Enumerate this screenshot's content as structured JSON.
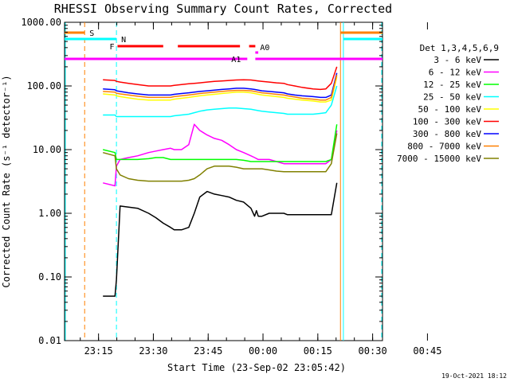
{
  "chart_data": {
    "type": "line",
    "title": "RHESSI Observing Summary Count Rates, Corrected",
    "xlabel": "Start Time (23-Sep-02 23:05:42)",
    "ylabel": "Corrected Count Rate (s⁻¹ detector⁻¹)",
    "y_scale": "log",
    "ylim": [
      0.01,
      1000
    ],
    "xlim_minutes": [
      0,
      87
    ],
    "x_tick_labels": [
      "23:15",
      "23:30",
      "23:45",
      "00:00",
      "00:15",
      "00:30",
      "00:45"
    ],
    "x_tick_minutes": [
      9.3,
      24.3,
      39.3,
      54.3,
      69.3,
      84.3,
      99.3
    ],
    "y_tick_labels": [
      "1000.00",
      "100.00",
      "10.00",
      "1.00",
      "0.10",
      "0.01"
    ],
    "y_tick_values": [
      1000,
      100,
      10,
      1,
      0.1,
      0.01
    ],
    "legend_title": "Det 1,3,4,5,6,9",
    "legend_position": "right",
    "footer_date": "19-Oct-2021 18:12",
    "series": [
      {
        "name": "3 - 6 keV",
        "color": "#000000",
        "x": [
          10.5,
          13.8,
          14.2,
          15.2,
          17.5,
          20,
          23,
          25,
          27,
          29,
          30,
          32,
          34,
          35.5,
          37,
          39,
          41,
          43,
          45,
          47,
          49,
          51,
          52,
          52.5,
          53,
          54,
          56,
          58,
          60,
          61,
          63,
          65,
          68,
          70,
          71.5,
          73,
          74.5
        ],
        "y": [
          0.05,
          0.05,
          0.09,
          1.3,
          1.25,
          1.2,
          1.0,
          0.85,
          0.7,
          0.6,
          0.55,
          0.55,
          0.6,
          1.0,
          1.8,
          2.2,
          2.0,
          1.9,
          1.8,
          1.6,
          1.5,
          1.2,
          0.9,
          1.1,
          0.9,
          0.9,
          1.0,
          1.0,
          1.0,
          0.95,
          0.95,
          0.95,
          0.95,
          0.95,
          0.95,
          0.95,
          3.0
        ]
      },
      {
        "name": "6 - 12 keV",
        "color": "#ff00ff",
        "x": [
          10.5,
          13.8,
          14.2,
          15.2,
          17.5,
          20,
          23,
          25,
          27,
          29,
          30,
          32,
          34,
          35.5,
          37,
          39,
          41,
          43,
          45,
          47,
          49,
          51,
          52,
          53,
          54,
          56,
          58,
          60,
          61,
          63,
          65,
          68,
          70,
          71.5,
          73,
          74.5
        ],
        "y": [
          3.0,
          2.7,
          5.5,
          7.0,
          7.5,
          8.0,
          9.0,
          9.5,
          10.0,
          10.5,
          10.0,
          10.0,
          12.0,
          25.0,
          20.0,
          17.0,
          15.0,
          14.0,
          12.0,
          10.0,
          9.0,
          8.0,
          7.5,
          7.0,
          7.0,
          7.0,
          6.5,
          6.0,
          6.0,
          6.0,
          6.0,
          6.0,
          6.0,
          6.0,
          7.0,
          20.0
        ]
      },
      {
        "name": "12 - 25 keV",
        "color": "#00ff00",
        "x": [
          10.5,
          13.8,
          14.2,
          15.2,
          17.5,
          20,
          23,
          25,
          27,
          29,
          30,
          32,
          34,
          35.5,
          37,
          39,
          41,
          43,
          45,
          47,
          49,
          51,
          52,
          53,
          54,
          56,
          58,
          60,
          61,
          63,
          65,
          68,
          70,
          71.5,
          73,
          74.5
        ],
        "y": [
          10.0,
          9.0,
          7.0,
          7.0,
          7.0,
          7.0,
          7.2,
          7.5,
          7.5,
          7.0,
          7.0,
          7.0,
          7.0,
          7.0,
          7.0,
          7.0,
          7.0,
          7.0,
          7.0,
          7.0,
          6.8,
          6.5,
          6.5,
          6.5,
          6.5,
          6.5,
          6.5,
          6.5,
          6.5,
          6.5,
          6.5,
          6.5,
          6.5,
          6.5,
          7.0,
          25.0
        ]
      },
      {
        "name": "25 - 50 keV",
        "color": "#00ffff",
        "x": [
          10.5,
          13.8,
          14.2,
          15.2,
          17.5,
          20,
          23,
          25,
          27,
          29,
          30,
          32,
          34,
          35.5,
          37,
          39,
          41,
          43,
          45,
          47,
          49,
          51,
          52,
          53,
          54,
          56,
          58,
          60,
          61,
          63,
          65,
          68,
          70,
          71.5,
          73,
          74.5
        ],
        "y": [
          35,
          35,
          33,
          33,
          33,
          33,
          33,
          33,
          33,
          33,
          34,
          35,
          36,
          38,
          40,
          42,
          43,
          44,
          45,
          45,
          44,
          43,
          42,
          41,
          40,
          39,
          38,
          37,
          36,
          36,
          36,
          36,
          37,
          38,
          50,
          100
        ]
      },
      {
        "name": "50 - 100 keV",
        "color": "#ffff00",
        "x": [
          10.5,
          13.8,
          14.2,
          15.2,
          17.5,
          20,
          23,
          25,
          27,
          29,
          30,
          32,
          34,
          35.5,
          37,
          39,
          41,
          43,
          45,
          47,
          49,
          51,
          52,
          53,
          54,
          56,
          58,
          60,
          61,
          63,
          65,
          68,
          70,
          71.5,
          73,
          74.5
        ],
        "y": [
          75,
          72,
          70,
          68,
          65,
          62,
          60,
          60,
          60,
          60,
          62,
          64,
          66,
          68,
          70,
          72,
          74,
          76,
          78,
          80,
          80,
          78,
          76,
          74,
          72,
          70,
          68,
          66,
          64,
          62,
          60,
          58,
          56,
          56,
          60,
          140
        ]
      },
      {
        "name": "100 - 300 keV",
        "color": "#ff0000",
        "x": [
          10.5,
          13.8,
          14.2,
          15.2,
          17.5,
          20,
          23,
          25,
          27,
          29,
          30,
          32,
          34,
          35.5,
          37,
          39,
          41,
          43,
          45,
          47,
          49,
          51,
          52,
          53,
          54,
          56,
          58,
          60,
          61,
          63,
          65,
          68,
          70,
          71.5,
          73,
          74.5
        ],
        "y": [
          125,
          122,
          118,
          115,
          110,
          105,
          100,
          100,
          100,
          100,
          102,
          105,
          108,
          110,
          112,
          115,
          118,
          120,
          122,
          124,
          125,
          124,
          122,
          120,
          118,
          115,
          112,
          110,
          105,
          100,
          95,
          90,
          88,
          90,
          110,
          200
        ]
      },
      {
        "name": "300 - 800 keV",
        "color": "#0000ff",
        "x": [
          10.5,
          13.8,
          14.2,
          15.2,
          17.5,
          20,
          23,
          25,
          27,
          29,
          30,
          32,
          34,
          35.5,
          37,
          39,
          41,
          43,
          45,
          47,
          49,
          51,
          52,
          53,
          54,
          56,
          58,
          60,
          61,
          63,
          65,
          68,
          70,
          71.5,
          73,
          74.5
        ],
        "y": [
          90,
          87,
          84,
          82,
          78,
          75,
          72,
          72,
          72,
          72,
          74,
          76,
          78,
          80,
          82,
          84,
          86,
          88,
          90,
          92,
          92,
          90,
          88,
          86,
          84,
          82,
          80,
          78,
          75,
          72,
          70,
          68,
          66,
          66,
          72,
          160
        ]
      },
      {
        "name": "800 - 7000 keV",
        "color": "#ff8000",
        "x": [
          10.5,
          13.8,
          14.2,
          15.2,
          17.5,
          20,
          23,
          25,
          27,
          29,
          30,
          32,
          34,
          35.5,
          37,
          39,
          41,
          43,
          45,
          47,
          49,
          51,
          52,
          53,
          54,
          56,
          58,
          60,
          61,
          63,
          65,
          68,
          70,
          71.5,
          73,
          74.5
        ],
        "y": [
          82,
          80,
          77,
          75,
          72,
          69,
          66,
          66,
          66,
          66,
          68,
          70,
          72,
          74,
          76,
          78,
          80,
          82,
          84,
          85,
          85,
          84,
          82,
          80,
          78,
          76,
          74,
          72,
          70,
          67,
          64,
          62,
          60,
          60,
          66,
          150
        ]
      },
      {
        "name": "7000 - 15000 keV",
        "color": "#808000",
        "x": [
          10.5,
          13.8,
          14.2,
          15.2,
          17.5,
          20,
          23,
          25,
          27,
          29,
          30,
          32,
          34,
          35.5,
          37,
          39,
          41,
          43,
          45,
          47,
          49,
          51,
          52,
          53,
          54,
          56,
          58,
          60,
          61,
          63,
          65,
          68,
          70,
          71.5,
          73,
          74.5
        ],
        "y": [
          9.0,
          8.0,
          5.0,
          4.0,
          3.5,
          3.3,
          3.2,
          3.2,
          3.2,
          3.2,
          3.2,
          3.2,
          3.3,
          3.5,
          4.0,
          5.0,
          5.5,
          5.5,
          5.5,
          5.3,
          5.0,
          5.0,
          5.0,
          5.0,
          5.0,
          4.8,
          4.6,
          4.5,
          4.5,
          4.5,
          4.5,
          4.5,
          4.5,
          4.5,
          6.0,
          18.0
        ]
      }
    ],
    "vertical_lines": [
      {
        "x": 5.5,
        "color": "#ff8000",
        "style": "dashed"
      },
      {
        "x": 14.2,
        "color": "#00ffff",
        "style": "dashed"
      },
      {
        "x": 75.5,
        "color": "#ff8000",
        "style": "solid"
      },
      {
        "x": 76.3,
        "color": "#00ffff",
        "style": "solid"
      },
      {
        "x": 87.0,
        "color": "#ff8000",
        "style": "dashed"
      },
      {
        "x": 87.3,
        "color": "#00ffff",
        "style": "dashed"
      }
    ],
    "annotation_bars": [
      {
        "label": "S",
        "color": "#ff8000",
        "segments": [
          [
            0,
            5.5
          ],
          [
            75.5,
            87
          ]
        ],
        "level": 1
      },
      {
        "label": "N",
        "color": "#00ffff",
        "segments": [
          [
            0,
            14.2
          ],
          [
            76.3,
            87
          ]
        ],
        "level": 2
      },
      {
        "label": "F",
        "color": "#ff0000",
        "segments": [
          [
            14.5,
            27
          ],
          [
            31,
            48
          ],
          [
            50.5,
            52.2
          ]
        ],
        "level": 3
      },
      {
        "label": "A0",
        "color": "#ff00ff",
        "segments": [
          [
            52.2,
            53
          ]
        ],
        "level": 4
      },
      {
        "label": "A1",
        "color": "#ff00ff",
        "segments": [
          [
            0,
            50
          ],
          [
            52.2,
            87
          ]
        ],
        "level": 5
      }
    ]
  }
}
